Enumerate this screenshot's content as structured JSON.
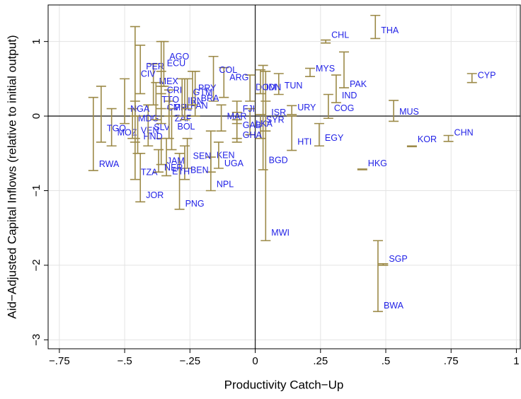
{
  "chart_data": {
    "type": "rangebar",
    "x_label": "Productivity Catch−Up",
    "y_label": "Aid−Adjusted Capital Inflows (relative to initial output)",
    "xlim": [
      -0.793,
      1.015
    ],
    "ylim": [
      -3.12,
      1.49
    ],
    "xticks": [
      {
        "value": -0.75,
        "label": "−.75"
      },
      {
        "value": -0.5,
        "label": "−.5"
      },
      {
        "value": -0.25,
        "label": "−.25"
      },
      0,
      {
        "value": 0.25,
        "label": ".25"
      },
      {
        "value": 0.5,
        "label": ".5"
      },
      {
        "value": 0.75,
        "label": ".75"
      },
      1
    ],
    "yticks": [
      {
        "value": -3,
        "label": "−3"
      },
      {
        "value": -2,
        "label": "−2"
      },
      {
        "value": -1,
        "label": "−1"
      },
      0,
      1
    ],
    "grid": true,
    "bar_color": "#9c8a48",
    "label_color": "#1f1fe6",
    "labels": [
      "THA",
      "CHL",
      "CYP",
      "MYS",
      "PAK",
      "IND",
      "COG",
      "URY",
      "TUN",
      "MUS",
      "CHN",
      "KOR",
      "HKG",
      "SGP",
      "BWA",
      "EGY",
      "HTI",
      "ISR",
      "SYR",
      "BGD",
      "MWI",
      "DOM",
      "IDN",
      "LKA",
      "GAB",
      "GHA",
      "FJI",
      "MAR",
      "ARG",
      "COL",
      "KEN",
      "UGA",
      "NPL",
      "SEN",
      "BEN",
      "ETH",
      "PNG",
      "JOR",
      "TZA",
      "RWA",
      "JAM",
      "NER",
      "HND",
      "MOZ",
      "TGO",
      "VEN",
      "SLV",
      "BOL",
      "MDG",
      "NGA",
      "ZAF",
      "TTO",
      "CMR",
      "PHL",
      "PAN",
      "BRA",
      "IRN",
      "GTM",
      "PRY",
      "CRI",
      "MEX",
      "CIV",
      "PER",
      "ECU",
      "AGO"
    ],
    "x": [
      0.46,
      0.27,
      0.83,
      0.21,
      0.34,
      0.31,
      0.28,
      0.14,
      0.09,
      0.53,
      0.74,
      0.6,
      0.41,
      0.49,
      0.47,
      0.245,
      0.14,
      0.04,
      0.02,
      0.03,
      0.04,
      -0.02,
      0.02,
      -0.02,
      -0.07,
      -0.07,
      -0.07,
      -0.13,
      -0.12,
      -0.16,
      -0.17,
      -0.14,
      -0.17,
      -0.26,
      -0.27,
      -0.34,
      -0.29,
      -0.44,
      -0.46,
      -0.62,
      -0.36,
      -0.37,
      -0.45,
      -0.55,
      -0.59,
      -0.46,
      -0.41,
      -0.32,
      -0.47,
      -0.5,
      -0.33,
      -0.38,
      -0.36,
      -0.33,
      -0.27,
      -0.23,
      -0.28,
      -0.26,
      -0.24,
      -0.36,
      -0.39,
      -0.46,
      -0.44,
      -0.36,
      -0.35
    ],
    "y": [
      1.14,
      1.08,
      0.54,
      0.63,
      0.42,
      0.27,
      0.1,
      0.11,
      0.4,
      0.05,
      -0.23,
      -0.32,
      -0.64,
      -1.92,
      -2.55,
      -0.3,
      -0.35,
      0.04,
      -0.06,
      -0.6,
      -1.57,
      0.38,
      0.38,
      -0.11,
      -0.13,
      -0.26,
      0.09,
      -0.01,
      0.51,
      0.61,
      -0.53,
      -0.64,
      -0.92,
      -0.54,
      -0.73,
      -0.75,
      -1.18,
      -1.07,
      -0.76,
      -0.65,
      -0.61,
      -0.7,
      -0.28,
      -0.23,
      -0.17,
      -0.2,
      -0.16,
      -0.15,
      -0.04,
      0.09,
      -0.04,
      0.21,
      0.11,
      0.11,
      0.13,
      0.23,
      0.2,
      0.31,
      0.37,
      0.34,
      0.46,
      0.56,
      0.66,
      0.7,
      0.79
    ],
    "low": [
      1.04,
      0.98,
      0.45,
      0.53,
      0.38,
      0.18,
      -0.03,
      0.02,
      0.29,
      -0.07,
      -0.34,
      -0.41,
      -0.72,
      -2.0,
      -2.62,
      -0.4,
      -0.46,
      -0.2,
      -0.3,
      -0.72,
      -1.67,
      0.2,
      0.3,
      -0.25,
      -0.3,
      -0.35,
      -0.1,
      -0.2,
      0.25,
      0.2,
      -0.75,
      -0.7,
      -1.0,
      -0.7,
      -0.85,
      -0.8,
      -1.25,
      -1.15,
      -0.85,
      -0.73,
      -0.65,
      -0.75,
      -0.5,
      -0.4,
      -0.35,
      -0.35,
      -0.4,
      -0.45,
      -0.3,
      -0.1,
      -0.3,
      -0.05,
      -0.1,
      0.0,
      -0.05,
      0.0,
      0.0,
      0.1,
      0.15,
      0.1,
      0.15,
      0.0,
      0.3,
      0.3,
      0.4
    ],
    "high": [
      1.35,
      1.02,
      0.57,
      0.64,
      0.86,
      0.55,
      0.29,
      0.14,
      0.57,
      0.21,
      -0.26,
      -0.4,
      -0.71,
      -1.98,
      -1.67,
      -0.1,
      0.0,
      0.2,
      0.02,
      0.68,
      0.6,
      0.55,
      0.62,
      0.1,
      0.05,
      -0.05,
      0.2,
      0.15,
      0.65,
      0.8,
      -0.2,
      -0.35,
      -0.55,
      -0.3,
      -0.4,
      -0.3,
      -0.5,
      -0.5,
      -0.3,
      0.25,
      -0.3,
      -0.45,
      0.0,
      0.1,
      0.4,
      0.2,
      0.15,
      0.1,
      0.1,
      0.5,
      0.2,
      0.45,
      0.4,
      0.35,
      0.5,
      0.6,
      0.5,
      0.5,
      0.6,
      0.6,
      0.7,
      1.2,
      0.95,
      1.0,
      1.0
    ]
  }
}
